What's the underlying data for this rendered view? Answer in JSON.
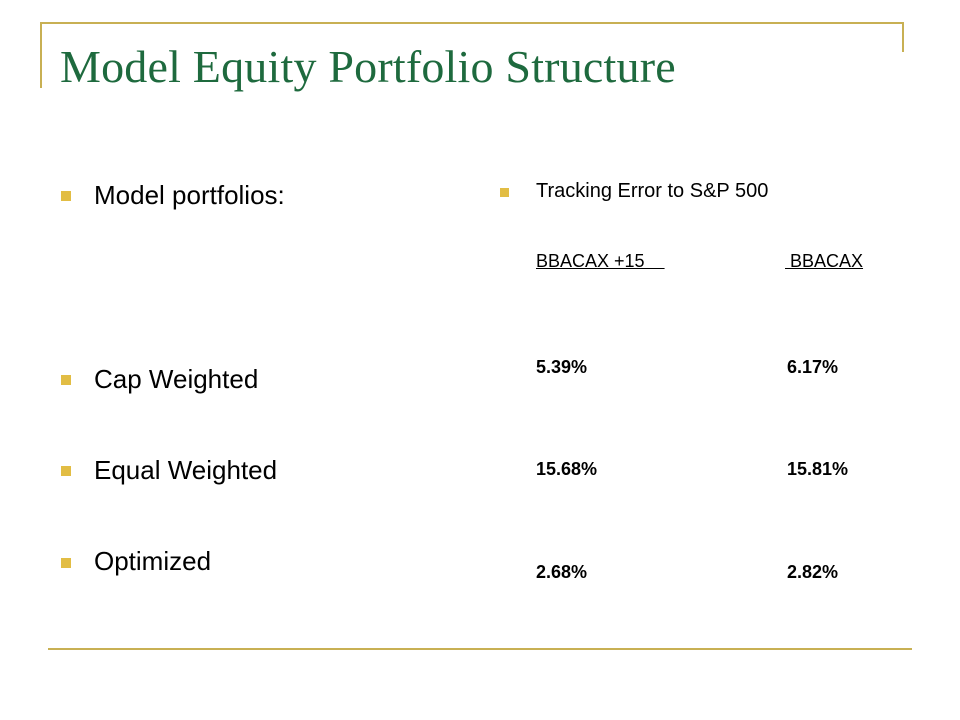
{
  "slide": {
    "title": "Model Equity Portfolio Structure"
  },
  "left_column": {
    "items": [
      "Model portfolios:",
      "Cap Weighted",
      "Equal Weighted",
      "Optimized"
    ]
  },
  "right_column": {
    "heading": "Tracking Error to S&P 500",
    "columns": [
      "BBACAX +15    ",
      " BBACAX"
    ],
    "rows": [
      [
        "5.39%",
        "6.17%"
      ],
      [
        "15.68%",
        "15.81%"
      ],
      [
        "2.68%",
        "2.82%"
      ]
    ]
  },
  "colors": {
    "title": "#1e6a3e",
    "frame": "#c8b053",
    "bullet": "#e2bd44"
  }
}
